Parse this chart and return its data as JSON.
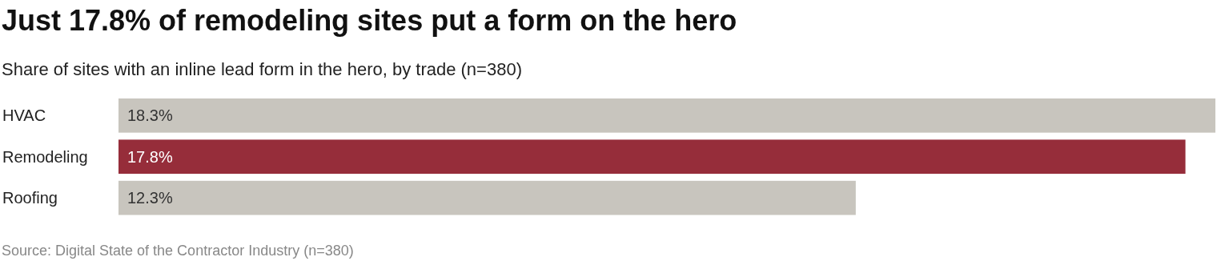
{
  "chart_data": {
    "type": "bar",
    "orientation": "horizontal",
    "title": "Just 17.8% of remodeling sites put a form on the hero",
    "subtitle": "Share of sites with an inline lead form in the hero, by trade (n=380)",
    "categories": [
      "HVAC",
      "Remodeling",
      "Roofing"
    ],
    "values": [
      18.3,
      17.8,
      12.3
    ],
    "value_labels": [
      "18.3%",
      "17.8%",
      "12.3%"
    ],
    "colors": [
      "#c8c5be",
      "#962d3a",
      "#c8c5be"
    ],
    "annotations": [
      "Source: Digital State of the Contractor Industry (n=380)"
    ]
  }
}
